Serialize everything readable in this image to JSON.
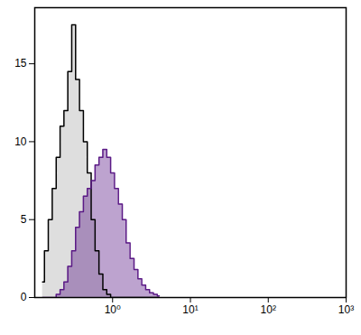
{
  "chart_data": {
    "type": "area",
    "log": "x",
    "grid": false,
    "x": [
      0.126,
      0.141,
      0.158,
      0.178,
      0.2,
      0.224,
      0.251,
      0.282,
      0.316,
      0.355,
      0.398,
      0.447,
      0.501,
      0.562,
      0.631,
      0.708,
      0.794,
      0.891,
      1,
      1.12,
      1.26,
      1.41,
      1.58,
      1.78,
      2.0,
      2.24,
      2.51,
      2.82,
      3.16,
      3.55,
      3.98
    ],
    "series": [
      {
        "color": "#000000",
        "values": [
          1,
          3,
          5,
          7,
          9,
          11,
          12,
          14.5,
          17.5,
          14,
          12,
          10,
          8,
          5,
          3,
          1.5,
          0.5,
          0.2,
          0,
          0,
          0,
          0,
          0,
          0,
          0,
          0,
          0,
          0,
          0,
          0,
          0
        ]
      },
      {
        "color": "#5b1a86",
        "values": [
          0,
          0,
          0,
          0,
          0.2,
          0.5,
          1,
          2,
          3,
          4.5,
          5.5,
          6.5,
          7,
          7.5,
          8.5,
          9,
          9.5,
          9,
          8,
          7,
          6,
          5,
          3.5,
          2.5,
          1.8,
          1.2,
          0.8,
          0.5,
          0.3,
          0.2,
          0.1
        ]
      }
    ],
    "xlim": [
      0.1,
      1000
    ],
    "xticks": [
      {
        "value": 1,
        "label": "10⁰"
      },
      {
        "value": 10,
        "label": "10¹"
      },
      {
        "value": 100,
        "label": "10²"
      },
      {
        "value": 1000,
        "label": "10³"
      }
    ],
    "ylim": [
      0,
      18.6
    ],
    "yticks": [
      0,
      5,
      10,
      15
    ]
  }
}
